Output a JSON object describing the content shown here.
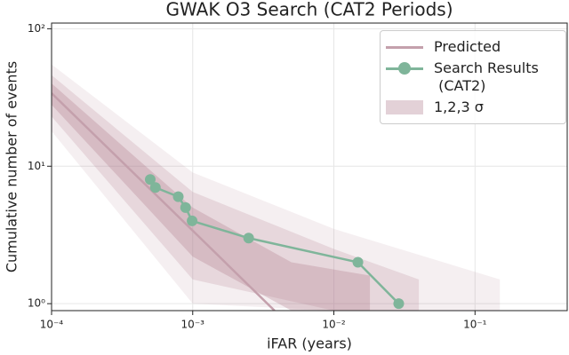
{
  "chart_data": {
    "type": "line",
    "title": "GWAK O3 Search (CAT2 Periods)",
    "x_label": "iFAR (years)",
    "y_label": "Cumulative number of events",
    "log_x": true,
    "log_y": true,
    "grid": true,
    "legend": "upper right",
    "xlim": [
      0.0001,
      0.45
    ],
    "ylim": [
      0.89,
      110
    ],
    "xticks": [
      {
        "value": 0.0001,
        "label": "10⁻⁴"
      },
      {
        "value": 0.001,
        "label": "10⁻³"
      },
      {
        "value": 0.01,
        "label": "10⁻²"
      },
      {
        "value": 0.1,
        "label": "10⁻¹"
      }
    ],
    "yticks": [
      {
        "value": 1,
        "label": "10⁰"
      },
      {
        "value": 10,
        "label": "10¹"
      },
      {
        "value": 100,
        "label": "10²"
      }
    ],
    "bands": {
      "name": "1,2,3 σ",
      "color": "#b07a8c",
      "levels": [
        {
          "x": [
            0.0001,
            0.001,
            0.01,
            0.15
          ],
          "lower": [
            18,
            1,
            0.89,
            0.89
          ],
          "upper": [
            55,
            9,
            3.5,
            1.5
          ]
        },
        {
          "x": [
            0.0001,
            0.001,
            0.01,
            0.04
          ],
          "lower": [
            23,
            1.5,
            0.89,
            0.89
          ],
          "upper": [
            46,
            6.5,
            2.5,
            1.5
          ]
        },
        {
          "x": [
            0.0001,
            0.001,
            0.005,
            0.018
          ],
          "lower": [
            28,
            2.2,
            0.89,
            0.89
          ],
          "upper": [
            40,
            5,
            2,
            1.6
          ]
        }
      ]
    },
    "series": [
      {
        "name": "Predicted",
        "color": "#c4a0ac",
        "x": [
          0.0001,
          0.001,
          0.0038
        ],
        "values": [
          34,
          3.4,
          0.89
        ]
      },
      {
        "name": "Search Results\n (CAT2)",
        "color": "#7fb59a",
        "markers": true,
        "x": [
          0.0005,
          0.000544,
          0.00079,
          0.00089,
          0.00099,
          0.00249,
          0.0148,
          0.0288
        ],
        "values": [
          8,
          7,
          6,
          5,
          4,
          3,
          2,
          1
        ]
      }
    ]
  }
}
